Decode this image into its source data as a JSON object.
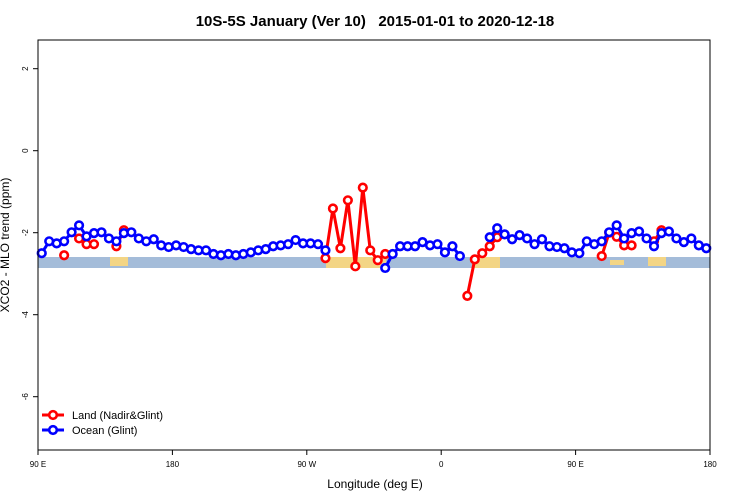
{
  "chart_data": {
    "type": "line",
    "title": "10S-5S January (Ver 10)   2015-01-01 to 2020-12-18",
    "x_label": "Longitude (deg E)",
    "y_label": "XCO2 - MLO trend (ppm)",
    "xlim": [
      90,
      540
    ],
    "xticks": [
      {
        "value": 90,
        "label": "90 E"
      },
      {
        "value": 180,
        "label": "180"
      },
      {
        "value": 270,
        "label": "90 W"
      },
      {
        "value": 360,
        "label": "0"
      },
      {
        "value": 450,
        "label": "90 E"
      },
      {
        "value": 540,
        "label": "180"
      }
    ],
    "ylim": [
      -7.3,
      2.7
    ],
    "yticks": [
      2,
      0,
      -2,
      -4,
      -6
    ],
    "legend_position": "bottom-left",
    "series": [
      {
        "name": "Land (Nadir&Glint)",
        "color": "#ff0000",
        "x": [
          107.5,
          112.5,
          117.5,
          122.5,
          127.5,
          132.5,
          142.5,
          147.5,
          152.5,
          282.5,
          287.5,
          292.5,
          297.5,
          302.5,
          307.5,
          312.5,
          317.5,
          322.5,
          327.5,
          377.5,
          382.5,
          387.5,
          392.5,
          397.5,
          402.5,
          467.5,
          472.5,
          477.5,
          482.5,
          487.5,
          492.5,
          502.5,
          507.5
        ],
        "values": [
          -2.55,
          null,
          -2.14,
          -2.28,
          -2.28,
          null,
          -2.33,
          -1.94,
          null,
          -2.62,
          -1.41,
          -2.38,
          -1.21,
          -2.82,
          -0.9,
          -2.43,
          -2.67,
          -2.52,
          null,
          -3.54,
          -2.65,
          -2.5,
          -2.33,
          -2.11,
          null,
          -2.57,
          -2.0,
          -2.1,
          -2.31,
          -2.31,
          null,
          -2.21,
          -1.94
        ]
      },
      {
        "name": "Ocean (Glint)",
        "color": "#0000ff",
        "x": [
          92.5,
          97.5,
          102.5,
          107.5,
          112.5,
          117.5,
          122.5,
          127.5,
          132.5,
          137.5,
          142.5,
          147.5,
          152.5,
          157.5,
          162.5,
          167.5,
          172.5,
          177.5,
          182.5,
          187.5,
          192.5,
          197.5,
          202.5,
          207.5,
          212.5,
          217.5,
          222.5,
          227.5,
          232.5,
          237.5,
          242.5,
          247.5,
          252.5,
          257.5,
          262.5,
          267.5,
          272.5,
          277.5,
          282.5,
          287.5,
          322.5,
          327.5,
          332.5,
          337.5,
          342.5,
          347.5,
          352.5,
          357.5,
          362.5,
          367.5,
          372.5,
          377.5,
          392.5,
          397.5,
          402.5,
          407.5,
          412.5,
          417.5,
          422.5,
          427.5,
          432.5,
          437.5,
          442.5,
          447.5,
          452.5,
          457.5,
          462.5,
          467.5,
          472.5,
          477.5,
          482.5,
          487.5,
          492.5,
          497.5,
          502.5,
          507.5,
          512.5,
          517.5,
          522.5,
          527.5,
          532.5,
          537.5
        ],
        "values": [
          -2.5,
          -2.21,
          -2.26,
          -2.21,
          -1.99,
          -1.82,
          -2.09,
          -2.01,
          -1.99,
          -2.14,
          -2.21,
          -2.01,
          -1.99,
          -2.14,
          -2.21,
          -2.16,
          -2.31,
          -2.35,
          -2.31,
          -2.35,
          -2.4,
          -2.43,
          -2.43,
          -2.52,
          -2.55,
          -2.52,
          -2.55,
          -2.52,
          -2.48,
          -2.43,
          -2.4,
          -2.33,
          -2.31,
          -2.28,
          -2.18,
          -2.26,
          -2.26,
          -2.28,
          -2.43,
          null,
          -2.86,
          -2.52,
          -2.33,
          -2.33,
          -2.33,
          -2.23,
          -2.31,
          -2.28,
          -2.48,
          -2.33,
          -2.57,
          null,
          -2.11,
          -1.89,
          -2.04,
          -2.16,
          -2.06,
          -2.14,
          -2.28,
          -2.16,
          -2.33,
          -2.35,
          -2.38,
          -2.48,
          -2.5,
          -2.21,
          -2.28,
          -2.21,
          -1.99,
          -1.82,
          -2.14,
          -2.01,
          -1.97,
          -2.14,
          -2.33,
          -2.01,
          -1.97,
          -2.14,
          -2.23,
          -2.14,
          -2.31,
          -2.38
        ]
      }
    ]
  }
}
